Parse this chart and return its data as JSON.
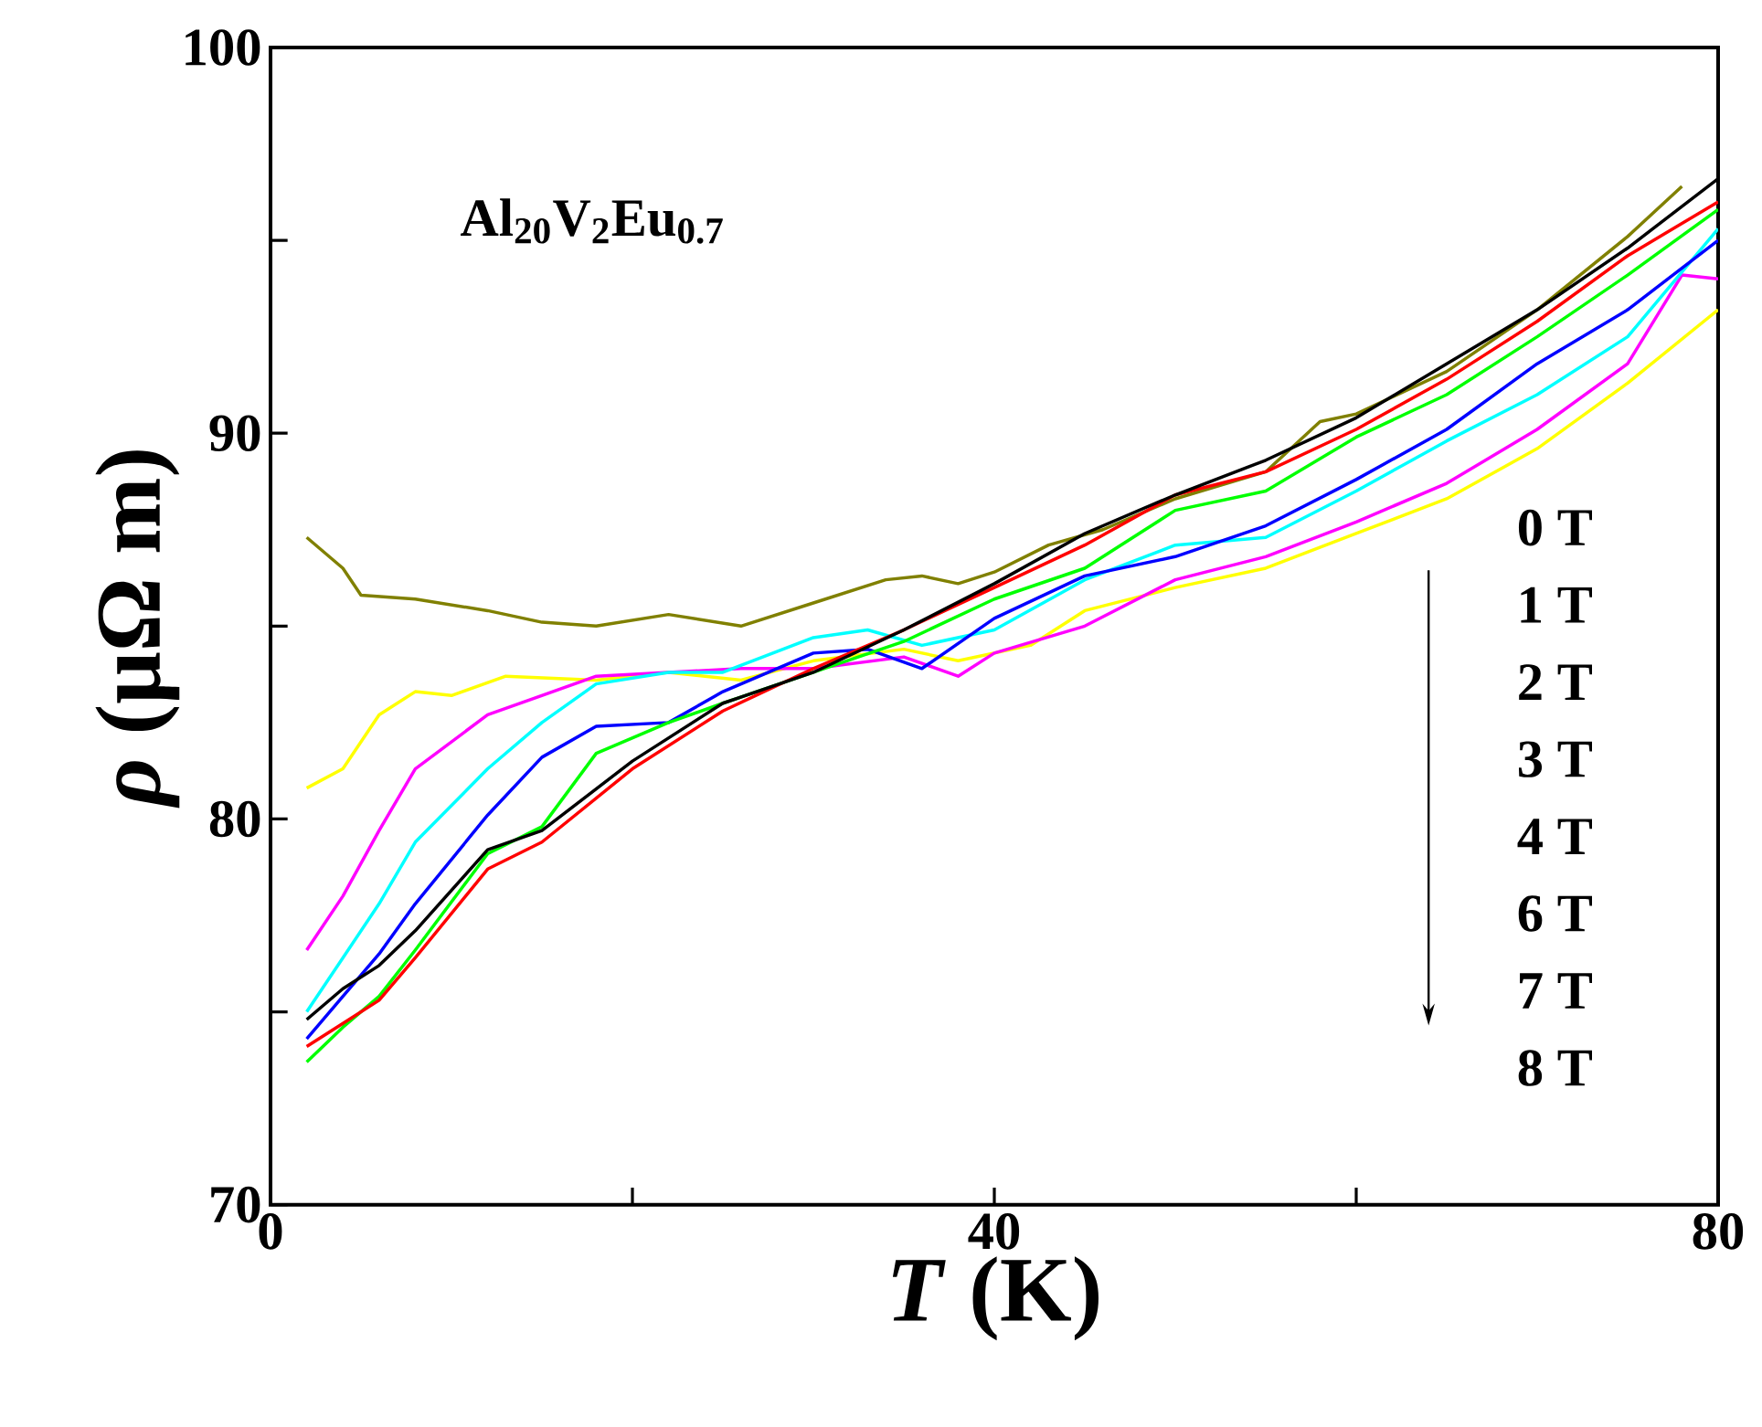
{
  "chart_data": {
    "type": "line",
    "xlabel": "*T* (K)",
    "ylabel": "*ρ* (μΩ m)",
    "xlim": [
      0,
      80
    ],
    "ylim": [
      70,
      100
    ],
    "xticks": [
      0,
      {
        "value": 20,
        "label": null
      },
      40,
      {
        "value": 60,
        "label": null
      },
      80
    ],
    "yticks": [
      70,
      {
        "value": 75,
        "label": null
      },
      80,
      {
        "value": 85,
        "label": null
      },
      90,
      {
        "value": 95,
        "label": null
      },
      100
    ],
    "annotations": [
      "Al$_{20}$V$_{2}$Eu$_{0.7}$",
      "0 T",
      "1 T",
      "2 T",
      "3 T",
      "4 T",
      "6 T",
      "7 T",
      "8 T"
    ],
    "series": [
      {
        "color": "#808000",
        "x": [
          2,
          4,
          5,
          8,
          12,
          15,
          18,
          22,
          26,
          30,
          34,
          36,
          38,
          40,
          43,
          46,
          50,
          55,
          58,
          60,
          65,
          70,
          75,
          78
        ],
        "values": [
          87.3,
          86.5,
          85.8,
          85.7,
          85.4,
          85.1,
          85.0,
          85.3,
          85.0,
          85.6,
          86.2,
          86.3,
          86.1,
          86.4,
          87.1,
          87.5,
          88.3,
          89.0,
          90.3,
          90.5,
          91.6,
          93.2,
          95.1,
          96.4
        ]
      },
      {
        "color": "#ffff00",
        "x": [
          2,
          4,
          6,
          8,
          10,
          13,
          18,
          22,
          26,
          30,
          35,
          38,
          42,
          45,
          50,
          55,
          60,
          65,
          70,
          75,
          80
        ],
        "values": [
          80.8,
          81.3,
          82.7,
          83.3,
          83.2,
          83.7,
          83.6,
          83.8,
          83.6,
          84.1,
          84.4,
          84.1,
          84.5,
          85.4,
          86.0,
          86.5,
          87.4,
          88.3,
          89.6,
          91.3,
          93.2
        ]
      },
      {
        "color": "#ff00ff",
        "x": [
          2,
          4,
          6,
          8,
          12,
          15,
          18,
          22,
          26,
          30,
          35,
          38,
          40,
          45,
          50,
          55,
          60,
          65,
          70,
          75,
          78,
          80
        ],
        "values": [
          76.6,
          78.0,
          79.7,
          81.3,
          82.7,
          83.2,
          83.7,
          83.8,
          83.9,
          83.9,
          84.2,
          83.7,
          84.3,
          85.0,
          86.2,
          86.8,
          87.7,
          88.7,
          90.1,
          91.8,
          94.1,
          94.0
        ]
      },
      {
        "color": "#00ffff",
        "x": [
          2,
          4,
          6,
          8,
          12,
          15,
          18,
          22,
          25,
          30,
          33,
          36,
          40,
          45,
          50,
          55,
          60,
          65,
          70,
          75,
          80
        ],
        "values": [
          75.0,
          76.4,
          77.8,
          79.4,
          81.3,
          82.5,
          83.5,
          83.8,
          83.8,
          84.7,
          84.9,
          84.5,
          84.9,
          86.2,
          87.1,
          87.3,
          88.5,
          89.8,
          91.0,
          92.5,
          95.3
        ]
      },
      {
        "color": "#0000ff",
        "x": [
          2,
          4,
          6,
          8,
          12,
          15,
          18,
          22,
          25,
          30,
          33,
          36,
          40,
          45,
          50,
          55,
          60,
          65,
          70,
          75,
          80
        ],
        "values": [
          74.3,
          75.4,
          76.5,
          77.8,
          80.1,
          81.6,
          82.4,
          82.5,
          83.3,
          84.3,
          84.4,
          83.9,
          85.2,
          86.3,
          86.8,
          87.6,
          88.8,
          90.1,
          91.8,
          93.2,
          95.0
        ]
      },
      {
        "color": "#00ff00",
        "x": [
          2,
          4,
          6,
          8,
          12,
          15,
          18,
          22,
          25,
          30,
          35,
          40,
          45,
          50,
          55,
          60,
          65,
          70,
          75,
          80
        ],
        "values": [
          73.7,
          74.6,
          75.4,
          76.6,
          79.1,
          79.8,
          81.7,
          82.5,
          83.0,
          83.8,
          84.6,
          85.7,
          86.5,
          88.0,
          88.5,
          89.9,
          91.0,
          92.5,
          94.1,
          95.8
        ]
      },
      {
        "color": "#ff0000",
        "x": [
          2,
          4,
          6,
          8,
          12,
          15,
          20,
          25,
          30,
          35,
          40,
          45,
          50,
          55,
          60,
          65,
          70,
          75,
          80
        ],
        "values": [
          74.1,
          74.7,
          75.3,
          76.4,
          78.7,
          79.4,
          81.3,
          82.8,
          83.9,
          84.9,
          86.0,
          87.1,
          88.4,
          89.0,
          90.1,
          91.4,
          92.9,
          94.6,
          96.0
        ]
      },
      {
        "color": "#000000",
        "x": [
          2,
          4,
          6,
          8,
          12,
          15,
          20,
          25,
          30,
          35,
          40,
          45,
          50,
          55,
          60,
          65,
          70,
          75,
          80
        ],
        "values": [
          74.8,
          75.6,
          76.2,
          77.1,
          79.2,
          79.7,
          81.5,
          83.0,
          83.8,
          84.9,
          86.1,
          87.4,
          88.4,
          89.3,
          90.4,
          91.8,
          93.2,
          94.8,
          96.6
        ]
      }
    ]
  }
}
